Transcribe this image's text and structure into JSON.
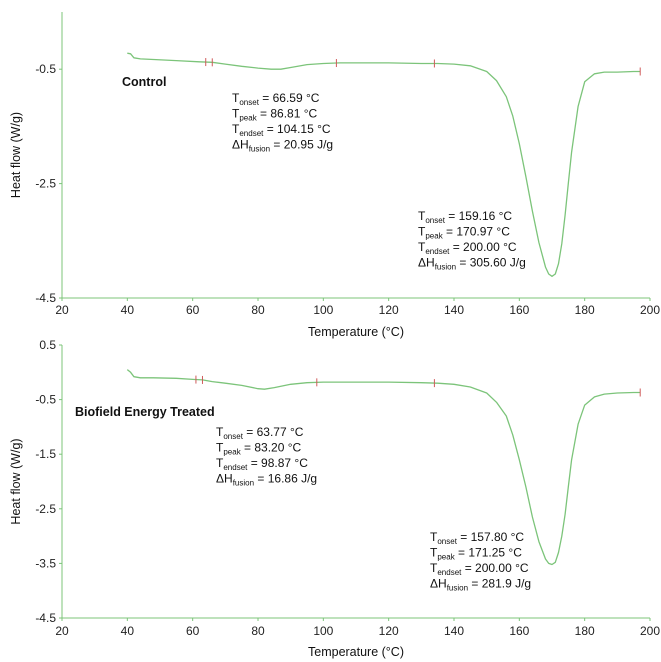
{
  "chart_data": [
    {
      "type": "line",
      "title": "",
      "sample_label": "Control",
      "xlabel": "Temperature (°C)",
      "ylabel": "Heat flow (W/g)",
      "xlim": [
        20,
        200
      ],
      "ylim": [
        -4.5,
        0.5
      ],
      "xticks": [
        "20",
        "40",
        "60",
        "80",
        "100",
        "120",
        "140",
        "160",
        "180",
        "200"
      ],
      "yticks": [
        "-0.5",
        "-2.5",
        "-4.5"
      ],
      "ytick_values": [
        -0.5,
        -2.5,
        -4.5
      ],
      "grid": false,
      "series": [
        {
          "color": "#7cc47a",
          "x": [
            40,
            41,
            42,
            44,
            48,
            55,
            62,
            66,
            70,
            75,
            80,
            84,
            87,
            90,
            95,
            100,
            105,
            110,
            120,
            130,
            135,
            140,
            145,
            150,
            153,
            156,
            158,
            160,
            162,
            164,
            166,
            168,
            169,
            170,
            171,
            172,
            173,
            174,
            175,
            176,
            178,
            180,
            183,
            186,
            190,
            195,
            197
          ],
          "values": [
            -0.22,
            -0.23,
            -0.3,
            -0.32,
            -0.33,
            -0.35,
            -0.37,
            -0.38,
            -0.41,
            -0.45,
            -0.48,
            -0.5,
            -0.5,
            -0.47,
            -0.42,
            -0.4,
            -0.39,
            -0.39,
            -0.39,
            -0.4,
            -0.4,
            -0.41,
            -0.44,
            -0.54,
            -0.7,
            -0.98,
            -1.32,
            -1.8,
            -2.38,
            -2.98,
            -3.53,
            -3.96,
            -4.08,
            -4.12,
            -4.08,
            -3.9,
            -3.55,
            -3.05,
            -2.5,
            -1.95,
            -1.15,
            -0.72,
            -0.58,
            -0.55,
            -0.55,
            -0.54,
            -0.54
          ]
        }
      ],
      "marker_x": [
        64,
        66,
        104,
        134,
        197
      ],
      "annotations": [
        {
          "lines": [
            {
              "sym": "T",
              "sub": "onset",
              "text": " = 66.59 °C"
            },
            {
              "sym": "T",
              "sub": "peak",
              "text": " = 86.81 °C"
            },
            {
              "sym": "T",
              "sub": "endset",
              "text": " = 104.15 °C"
            },
            {
              "sym": "ΔH",
              "sub": "fusion",
              "text": " = 20.95 J/g"
            }
          ]
        },
        {
          "lines": [
            {
              "sym": "T",
              "sub": "onset",
              "text": " = 159.16 °C"
            },
            {
              "sym": "T",
              "sub": "peak",
              "text": " = 170.97 °C"
            },
            {
              "sym": "T",
              "sub": "endset",
              "text": " = 200.00 °C"
            },
            {
              "sym": "ΔH",
              "sub": "fusion",
              "text": " = 305.60 J/g"
            }
          ]
        }
      ]
    },
    {
      "type": "line",
      "title": "",
      "sample_label": "Biofield Energy Treated",
      "xlabel": "Temperature (°C)",
      "ylabel": "Heat flow (W/g)",
      "xlim": [
        20,
        200
      ],
      "ylim": [
        -4.5,
        0.5
      ],
      "xticks": [
        "20",
        "40",
        "60",
        "80",
        "100",
        "120",
        "140",
        "160",
        "180",
        "200"
      ],
      "yticks": [
        "0.5",
        "-0.5",
        "-1.5",
        "-2.5",
        "-3.5",
        "-4.5"
      ],
      "ytick_values": [
        0.5,
        -0.5,
        -1.5,
        -2.5,
        -3.5,
        -4.5
      ],
      "grid": false,
      "series": [
        {
          "color": "#7cc47a",
          "x": [
            40,
            41,
            42,
            44,
            48,
            55,
            60,
            63,
            66,
            70,
            75,
            80,
            82,
            85,
            90,
            95,
            100,
            110,
            120,
            130,
            135,
            140,
            145,
            150,
            153,
            156,
            158,
            160,
            162,
            164,
            166,
            168,
            169,
            170,
            171,
            172,
            173,
            174,
            175,
            176,
            178,
            180,
            183,
            186,
            190,
            195,
            197
          ],
          "values": [
            0.05,
            0.0,
            -0.08,
            -0.1,
            -0.1,
            -0.11,
            -0.13,
            -0.14,
            -0.17,
            -0.2,
            -0.24,
            -0.3,
            -0.31,
            -0.28,
            -0.22,
            -0.19,
            -0.18,
            -0.18,
            -0.18,
            -0.19,
            -0.2,
            -0.22,
            -0.27,
            -0.38,
            -0.55,
            -0.8,
            -1.15,
            -1.6,
            -2.1,
            -2.65,
            -3.1,
            -3.42,
            -3.5,
            -3.52,
            -3.48,
            -3.3,
            -3.0,
            -2.6,
            -2.1,
            -1.6,
            -0.95,
            -0.6,
            -0.45,
            -0.4,
            -0.38,
            -0.37,
            -0.37
          ]
        }
      ],
      "marker_x": [
        61,
        63,
        98,
        134,
        197
      ],
      "annotations": [
        {
          "lines": [
            {
              "sym": "T",
              "sub": "onset",
              "text": " = 63.77 °C"
            },
            {
              "sym": "T",
              "sub": "peak",
              "text": " = 83.20 °C"
            },
            {
              "sym": "T",
              "sub": "endset",
              "text": " = 98.87 °C"
            },
            {
              "sym": "ΔH",
              "sub": "fusion",
              "text": " = 16.86 J/g"
            }
          ]
        },
        {
          "lines": [
            {
              "sym": "T",
              "sub": "onset",
              "text": " = 157.80 °C"
            },
            {
              "sym": "T",
              "sub": "peak",
              "text": " = 171.25 °C"
            },
            {
              "sym": "T",
              "sub": "endset",
              "text": " = 200.00 °C"
            },
            {
              "sym": "ΔH",
              "sub": "fusion",
              "text": " = 281.9 J/g"
            }
          ]
        }
      ]
    }
  ]
}
